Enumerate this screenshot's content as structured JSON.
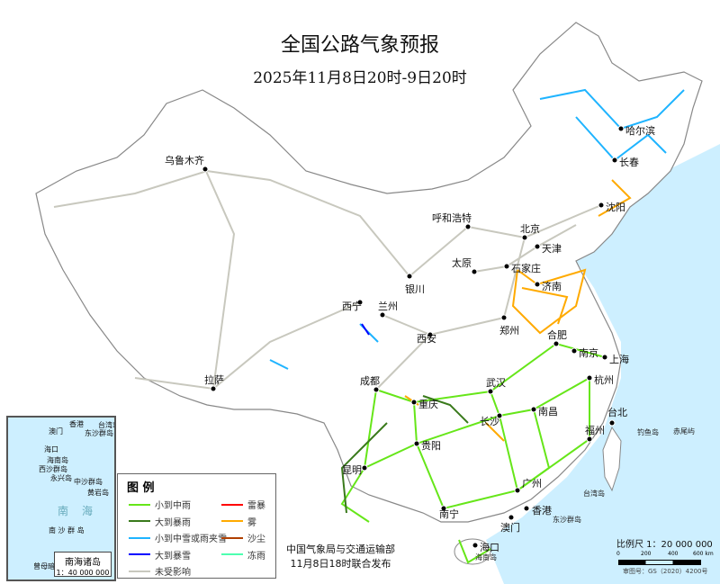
{
  "title": "全国公路气象预报",
  "subtitle": "2025年11月8日20时-9日20时",
  "colors": {
    "sea": "#cdefff",
    "land": "#ffffff",
    "road_unaffected": "#c8c8be",
    "light_moderate_rain": "#66e619",
    "heavy_rain": "#3a7a1c",
    "light_snow_sleet": "#1fb4ff",
    "heavy_snow": "#0000ff",
    "thunderstorm": "#ff0000",
    "fog": "#ffaa00",
    "sandstorm": "#b04000",
    "freezing_rain": "#4dffb0"
  },
  "cities": [
    {
      "name": "哈尔滨"
    },
    {
      "name": "长春"
    },
    {
      "name": "沈阳"
    },
    {
      "name": "北京"
    },
    {
      "name": "天津"
    },
    {
      "name": "呼和浩特"
    },
    {
      "name": "石家庄"
    },
    {
      "name": "太原"
    },
    {
      "name": "济南"
    },
    {
      "name": "银川"
    },
    {
      "name": "兰州"
    },
    {
      "name": "西宁"
    },
    {
      "name": "郑州"
    },
    {
      "name": "西安"
    },
    {
      "name": "合肥"
    },
    {
      "name": "南京"
    },
    {
      "name": "上海"
    },
    {
      "name": "武汉"
    },
    {
      "name": "杭州"
    },
    {
      "name": "成都"
    },
    {
      "name": "重庆"
    },
    {
      "name": "长沙"
    },
    {
      "name": "南昌"
    },
    {
      "name": "福州"
    },
    {
      "name": "贵阳"
    },
    {
      "name": "昆明"
    },
    {
      "name": "南宁"
    },
    {
      "name": "广州"
    },
    {
      "name": "香港"
    },
    {
      "name": "澳门"
    },
    {
      "name": "海口"
    },
    {
      "name": "台北"
    },
    {
      "name": "拉萨"
    },
    {
      "name": "乌鲁木齐"
    }
  ],
  "islands": [
    "钓鱼岛",
    "赤尾屿",
    "台湾岛",
    "东沙群岛",
    "海南岛"
  ],
  "inset": {
    "labels": [
      "香港",
      "澳门",
      "台湾岛",
      "东沙群岛",
      "海口",
      "海南岛",
      "西沙群岛",
      "永兴岛",
      "中沙群岛",
      "黄岩岛",
      "南",
      "海",
      "南 沙 群 岛",
      "曾母暗沙"
    ],
    "title": "南海诸岛",
    "scale": "1：40 000 000"
  },
  "legend": {
    "title": "图 例",
    "items": [
      {
        "label": "小到中雨",
        "color": "#66e619"
      },
      {
        "label": "大到暴雨",
        "color": "#3a7a1c"
      },
      {
        "label": "小到中雪或雨夹雪",
        "color": "#1fb4ff"
      },
      {
        "label": "大到暴雪",
        "color": "#0000ff"
      },
      {
        "label": "未受影响",
        "color": "#c8c8be"
      },
      {
        "label": "雷暴",
        "color": "#ff0000"
      },
      {
        "label": "雾",
        "color": "#ffaa00"
      },
      {
        "label": "沙尘",
        "color": "#b04000"
      },
      {
        "label": "冻雨",
        "color": "#4dffb0"
      }
    ]
  },
  "issuer": {
    "line1": "中国气象局与交通运输部",
    "line2": "11月8日18时联合发布"
  },
  "scale": {
    "label": "比例尺 1：20 000 000",
    "ticks": [
      "0",
      "200",
      "400",
      "600 km"
    ]
  },
  "approval": "审图号：GS（2020）4200号"
}
